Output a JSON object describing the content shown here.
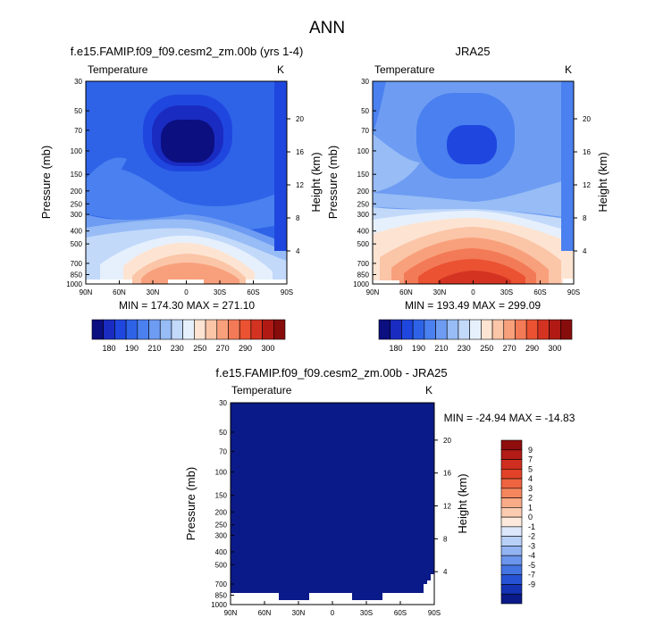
{
  "figure": {
    "title": "ANN"
  },
  "chart_data": [
    {
      "type": "heatmap",
      "id": "model",
      "title": "f.e15.FAMIP.f09_f09.cesm2_zm.00b (yrs 1-4)",
      "variable": "Temperature",
      "units": "K",
      "xlabel": "",
      "ylabel": "Pressure (mb)",
      "ylabel_right": "Height (km)",
      "x_ticks": [
        "90N",
        "60N",
        "30N",
        "0",
        "30S",
        "60S",
        "90S"
      ],
      "x_range": [
        90,
        -90
      ],
      "y_ticks": [
        "30",
        "50",
        "70",
        "100",
        "150",
        "200",
        "250",
        "300",
        "400",
        "500",
        "700",
        "850",
        "1000"
      ],
      "y_range": [
        30,
        1000
      ],
      "y_scale": "log",
      "height_ticks": [
        "4",
        "8",
        "12",
        "16",
        "20"
      ],
      "min_max_text": "MIN = 174.30  MAX = 271.10",
      "min": 174.3,
      "max": 271.1,
      "colorbar": {
        "orientation": "horizontal",
        "labels": [
          "180",
          "190",
          "210",
          "230",
          "250",
          "270",
          "290",
          "300"
        ],
        "colors": [
          "#0b0f80",
          "#1a2bc1",
          "#1f47df",
          "#2e63e8",
          "#4a80ef",
          "#6d9cf2",
          "#97bcf6",
          "#c2d9fa",
          "#e6f0fd",
          "#fde4d2",
          "#fbc5a8",
          "#f8a07c",
          "#f37a56",
          "#ea5232",
          "#d43322",
          "#b11a14",
          "#870c0c"
        ]
      }
    },
    {
      "type": "heatmap",
      "id": "obs",
      "title": "JRA25",
      "variable": "Temperature",
      "units": "K",
      "xlabel": "",
      "ylabel": "Pressure (mb)",
      "ylabel_right": "Height (km)",
      "x_ticks": [
        "90N",
        "60N",
        "30N",
        "0",
        "30S",
        "60S",
        "90S"
      ],
      "x_range": [
        90,
        -90
      ],
      "y_ticks": [
        "30",
        "50",
        "70",
        "100",
        "150",
        "200",
        "250",
        "300",
        "400",
        "500",
        "700",
        "850",
        "1000"
      ],
      "y_range": [
        30,
        1000
      ],
      "y_scale": "log",
      "height_ticks": [
        "4",
        "8",
        "12",
        "16",
        "20"
      ],
      "min_max_text": "MIN = 193.49  MAX = 299.09",
      "min": 193.49,
      "max": 299.09,
      "colorbar": {
        "orientation": "horizontal",
        "labels": [
          "180",
          "190",
          "210",
          "230",
          "250",
          "270",
          "290",
          "300"
        ]
      }
    },
    {
      "type": "heatmap",
      "id": "diff",
      "title": "f.e15.FAMIP.f09_f09.cesm2_zm.00b - JRA25",
      "variable": "Temperature",
      "units": "K",
      "xlabel": "",
      "ylabel": "Pressure (mb)",
      "ylabel_right": "Height (km)",
      "x_ticks": [
        "90N",
        "60N",
        "30N",
        "0",
        "30S",
        "60S",
        "90S"
      ],
      "x_range": [
        90,
        -90
      ],
      "y_ticks": [
        "30",
        "50",
        "70",
        "100",
        "150",
        "200",
        "250",
        "300",
        "400",
        "500",
        "700",
        "850",
        "1000"
      ],
      "y_range": [
        30,
        1000
      ],
      "y_scale": "log",
      "height_ticks": [
        "4",
        "8",
        "12",
        "16",
        "20"
      ],
      "min_max_text": "MIN = -24.94  MAX = -14.83",
      "min": -24.94,
      "max": -14.83,
      "colorbar": {
        "orientation": "vertical",
        "labels": [
          "9",
          "7",
          "5",
          "4",
          "3",
          "2",
          "1",
          "0",
          "-1",
          "-2",
          "-3",
          "-4",
          "-5",
          "-7",
          "-9"
        ],
        "colors": [
          "#8f0d0d",
          "#b21b16",
          "#cf2e20",
          "#e24328",
          "#ee6340",
          "#f5865e",
          "#f9aa86",
          "#fccbb0",
          "#feeadd",
          "#dbe8fb",
          "#b8d0f7",
          "#92b4f2",
          "#6b95ec",
          "#4574e3",
          "#2653d6",
          "#1433b4",
          "#0a1a88"
        ]
      }
    }
  ]
}
